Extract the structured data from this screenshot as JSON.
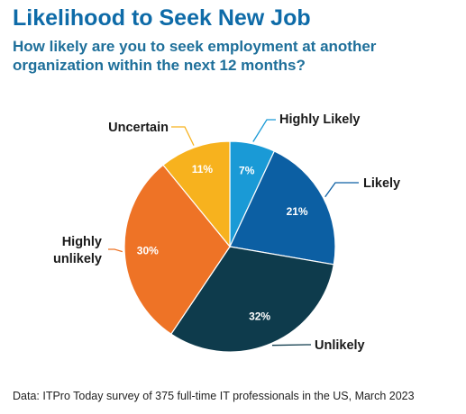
{
  "header": {
    "title": "Likelihood to Seek New Job",
    "subtitle": "How likely are you to seek employment at another organization within the next 12 months?"
  },
  "footer": {
    "source": "Data: ITPro Today survey of 375 full-time IT professionals in the US, March 2023"
  },
  "chart_data": {
    "type": "pie",
    "title": "Likelihood to Seek New Job",
    "subtitle": "How likely are you to seek employment at another organization within the next 12 months?",
    "categories": [
      "Highly Likely",
      "Likely",
      "Unlikely",
      "Highly unlikely",
      "Uncertain"
    ],
    "values": [
      7,
      21,
      32,
      30,
      11
    ],
    "value_labels": [
      "7%",
      "21%",
      "32%",
      "30%",
      "11%"
    ],
    "colors": [
      "#1a9ad6",
      "#0c5fa3",
      "#0e3b4c",
      "#ee7326",
      "#f7b21e"
    ],
    "start": "12 o'clock, clockwise",
    "legend": "none (callout labels)"
  }
}
